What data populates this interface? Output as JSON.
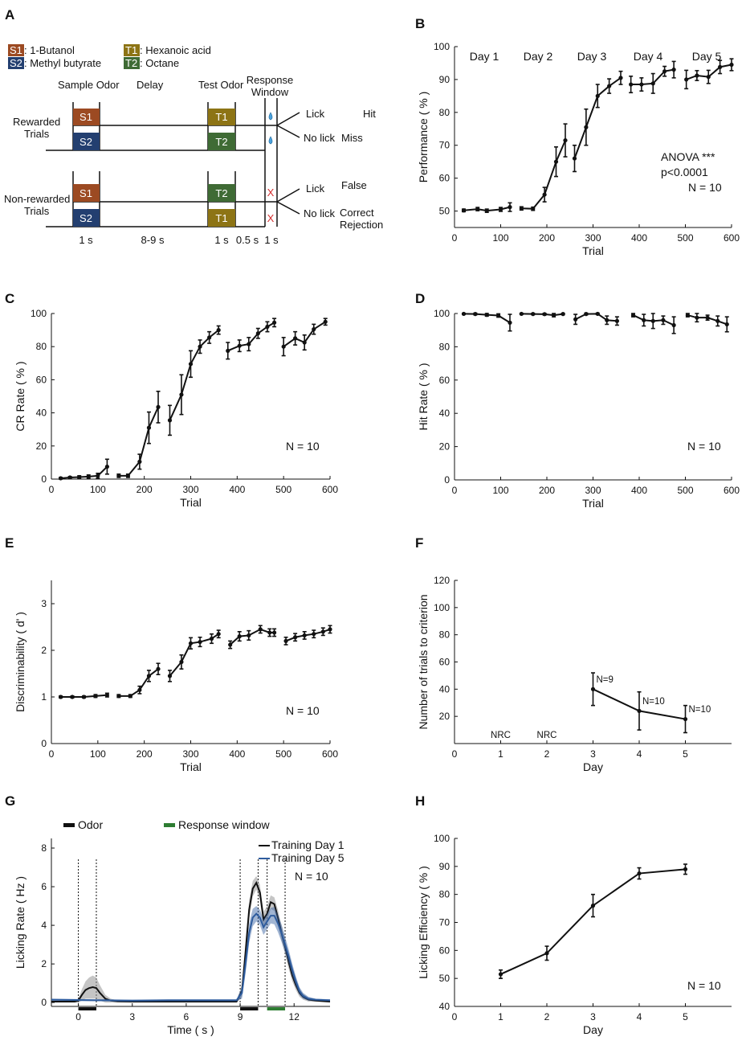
{
  "colors": {
    "s1": "#9c4a22",
    "s2": "#233f70",
    "t1": "#8d7415",
    "t2": "#3f6b35",
    "gray": "#bdbdbd",
    "blue": "#2e5c9e",
    "response": "#2e7d32",
    "black": "#111111"
  },
  "panelA": {
    "letter": "A",
    "legend": {
      "s1_tag": "S1",
      "s1_name": ": 1-Butanol",
      "s2_tag": "S2",
      "s2_name": ": Methyl butyrate",
      "t1_tag": "T1",
      "t1_name": ": Hexanoic acid",
      "t2_tag": "T2",
      "t2_name": ": Octane"
    },
    "headers": {
      "sample": "Sample Odor",
      "delay": "Delay",
      "test": "Test Odor",
      "response_line1": "Response",
      "response_line2": "Window"
    },
    "rewarded": {
      "label_line1": "Rewarded",
      "label_line2": "Trials",
      "top_sample": "S1",
      "bottom_sample": "S2",
      "top_test": "T1",
      "bottom_test": "T2",
      "lick": "Lick",
      "nolick": "No lick",
      "outcome_lick": "Hit",
      "outcome_nolick": "Miss"
    },
    "nonrewarded": {
      "label_line1": "Non-rewarded",
      "label_line2": "Trials",
      "top_sample": "S1",
      "bottom_sample": "S2",
      "top_test": "T2",
      "bottom_test": "T1",
      "lick": "Lick",
      "nolick": "No lick",
      "outcome_lick": "False",
      "outcome_nolick_line1": "Correct",
      "outcome_nolick_line2": "Rejection",
      "cross": "X"
    },
    "durations": {
      "sample": "1 s",
      "delay": "8-9 s",
      "test": "1 s",
      "gap": "0.5 s",
      "response": "1 s"
    }
  },
  "chart_data": [
    {
      "panel": "B",
      "type": "line",
      "xlabel": "Trial",
      "ylabel": "Performance ( % )",
      "xlim": [
        0,
        600
      ],
      "ylim": [
        45,
        100
      ],
      "xticks": [
        0,
        100,
        200,
        300,
        400,
        500,
        600
      ],
      "yticks": [
        50,
        60,
        70,
        80,
        90,
        100
      ],
      "day_labels": [
        "Day 1",
        "Day 2",
        "Day 3",
        "Day 4",
        "Day 5"
      ],
      "annotations": [
        "ANOVA ***",
        "p<0.0001",
        "N = 10"
      ],
      "segments": [
        {
          "x": [
            20,
            50,
            70,
            100,
            120
          ],
          "y": [
            50.2,
            50.6,
            50.1,
            50.5,
            51.2
          ],
          "err": [
            0.4,
            0.5,
            0.5,
            0.6,
            1.3
          ]
        },
        {
          "x": [
            145,
            170,
            195,
            220,
            240
          ],
          "y": [
            50.8,
            50.7,
            55.0,
            65.0,
            71.5
          ],
          "err": [
            0.5,
            0.5,
            2.2,
            4.5,
            5.0
          ]
        },
        {
          "x": [
            260,
            285,
            310,
            335,
            360
          ],
          "y": [
            66.0,
            75.5,
            85.0,
            88.0,
            90.5
          ],
          "err": [
            4.0,
            5.5,
            3.5,
            2.2,
            2.0
          ]
        },
        {
          "x": [
            382,
            405,
            430,
            455,
            475
          ],
          "y": [
            88.5,
            88.5,
            88.8,
            92.5,
            93.0
          ],
          "err": [
            2.5,
            2.0,
            3.0,
            1.5,
            2.5
          ]
        },
        {
          "x": [
            502,
            525,
            550,
            575,
            600
          ],
          "y": [
            90.0,
            91.2,
            90.8,
            93.8,
            94.5
          ],
          "err": [
            2.8,
            1.5,
            2.0,
            2.0,
            1.8
          ]
        }
      ]
    },
    {
      "panel": "C",
      "type": "line",
      "xlabel": "Trial",
      "ylabel": "CR Rate ( % )",
      "xlim": [
        0,
        600
      ],
      "ylim": [
        0,
        100
      ],
      "xticks": [
        0,
        100,
        200,
        300,
        400,
        500,
        600
      ],
      "yticks": [
        0,
        20,
        40,
        60,
        80,
        100
      ],
      "annotations": [
        "N = 10"
      ],
      "segments": [
        {
          "x": [
            20,
            40,
            60,
            80,
            100,
            120
          ],
          "y": [
            0.5,
            1.0,
            1.2,
            1.5,
            2.0,
            7.5
          ],
          "err": [
            0.5,
            0.5,
            0.8,
            1.0,
            1.5,
            4.5
          ]
        },
        {
          "x": [
            145,
            165,
            190,
            210,
            230
          ],
          "y": [
            2.0,
            2.0,
            10.5,
            31.0,
            43.5
          ],
          "err": [
            1.0,
            1.0,
            4.5,
            9.5,
            9.5
          ]
        },
        {
          "x": [
            255,
            280,
            300,
            320,
            340,
            360
          ],
          "y": [
            35.5,
            51.0,
            69.5,
            80.0,
            85.5,
            90.0
          ],
          "err": [
            9.0,
            12.0,
            8.0,
            4.0,
            3.5,
            2.5
          ]
        },
        {
          "x": [
            380,
            405,
            425,
            445,
            465,
            480
          ],
          "y": [
            77.5,
            80.5,
            81.5,
            88.0,
            92.0,
            94.5
          ],
          "err": [
            5.0,
            3.5,
            4.0,
            3.0,
            3.0,
            2.5
          ]
        },
        {
          "x": [
            500,
            525,
            545,
            565,
            590
          ],
          "y": [
            80.0,
            85.0,
            82.5,
            90.5,
            95.0
          ],
          "err": [
            5.5,
            4.0,
            4.5,
            3.0,
            2.0
          ]
        }
      ]
    },
    {
      "panel": "D",
      "type": "line",
      "xlabel": "Trial",
      "ylabel": "Hit Rate ( % )",
      "xlim": [
        0,
        600
      ],
      "ylim": [
        0,
        100
      ],
      "xticks": [
        0,
        100,
        200,
        300,
        400,
        500,
        600
      ],
      "yticks": [
        0,
        20,
        40,
        60,
        80,
        100
      ],
      "annotations": [
        "N = 10"
      ],
      "segments": [
        {
          "x": [
            20,
            45,
            70,
            95,
            120
          ],
          "y": [
            99.8,
            99.7,
            99.2,
            98.8,
            94.5
          ],
          "err": [
            0.3,
            0.5,
            0.8,
            1.0,
            5.0
          ]
        },
        {
          "x": [
            145,
            170,
            195,
            215,
            235
          ],
          "y": [
            99.8,
            99.7,
            99.6,
            99.0,
            99.7
          ],
          "err": [
            0.3,
            0.4,
            0.5,
            1.0,
            0.4
          ]
        },
        {
          "x": [
            262,
            285,
            310,
            330,
            352
          ],
          "y": [
            96.5,
            99.7,
            99.8,
            96.0,
            95.5
          ],
          "err": [
            3.0,
            0.5,
            0.4,
            2.5,
            2.5
          ]
        },
        {
          "x": [
            387,
            410,
            430,
            452,
            475
          ],
          "y": [
            99.0,
            96.0,
            95.5,
            96.0,
            93.0
          ],
          "err": [
            1.0,
            3.5,
            4.5,
            2.5,
            5.0
          ]
        },
        {
          "x": [
            505,
            525,
            548,
            570,
            590
          ],
          "y": [
            99.0,
            97.5,
            97.5,
            95.5,
            93.5
          ],
          "err": [
            1.0,
            2.5,
            1.5,
            3.0,
            4.5
          ]
        }
      ]
    },
    {
      "panel": "E",
      "type": "line",
      "xlabel": "Trial",
      "ylabel": "Discriminability ( d' )",
      "xlim": [
        0,
        600
      ],
      "ylim": [
        0,
        3.5
      ],
      "xticks": [
        0,
        100,
        200,
        300,
        400,
        500,
        600
      ],
      "yticks": [
        0,
        1,
        2,
        3
      ],
      "annotations": [
        "N = 10"
      ],
      "segments": [
        {
          "x": [
            20,
            45,
            70,
            95,
            120
          ],
          "y": [
            1.0,
            1.0,
            1.0,
            1.02,
            1.04
          ],
          "err": [
            0.02,
            0.02,
            0.02,
            0.03,
            0.04
          ]
        },
        {
          "x": [
            145,
            170,
            190,
            210,
            230
          ],
          "y": [
            1.02,
            1.02,
            1.15,
            1.45,
            1.6
          ],
          "err": [
            0.03,
            0.03,
            0.08,
            0.12,
            0.12
          ]
        },
        {
          "x": [
            255,
            280,
            300,
            320,
            345,
            360
          ],
          "y": [
            1.45,
            1.75,
            2.15,
            2.18,
            2.25,
            2.35
          ],
          "err": [
            0.12,
            0.15,
            0.12,
            0.1,
            0.1,
            0.08
          ]
        },
        {
          "x": [
            385,
            405,
            425,
            450,
            470,
            480
          ],
          "y": [
            2.12,
            2.3,
            2.32,
            2.45,
            2.38,
            2.38
          ],
          "err": [
            0.08,
            0.1,
            0.1,
            0.08,
            0.08,
            0.08
          ]
        },
        {
          "x": [
            505,
            525,
            545,
            565,
            585,
            600
          ],
          "y": [
            2.2,
            2.28,
            2.32,
            2.35,
            2.4,
            2.45
          ],
          "err": [
            0.08,
            0.08,
            0.08,
            0.08,
            0.08,
            0.08
          ]
        }
      ]
    },
    {
      "panel": "F",
      "type": "line",
      "xlabel": "Day",
      "ylabel": "Number of trials to criterion",
      "xlim": [
        0,
        6
      ],
      "ylim": [
        0,
        120
      ],
      "xticks": [
        0,
        1,
        2,
        3,
        4,
        5
      ],
      "yticks": [
        20,
        40,
        60,
        80,
        100,
        120
      ],
      "nrc_days": [
        1,
        2
      ],
      "nrc_label": "NRC",
      "segments": [
        {
          "x": [
            3,
            4,
            5
          ],
          "y": [
            40,
            24,
            18
          ],
          "err": [
            12,
            14,
            10
          ]
        }
      ],
      "point_labels": [
        "N=9",
        "N=10",
        "N=10"
      ]
    },
    {
      "panel": "G",
      "type": "line",
      "xlabel": "Time ( s )",
      "ylabel": "Licking Rate ( Hz )",
      "xlim": [
        -1.5,
        14
      ],
      "ylim": [
        -0.2,
        8.5
      ],
      "xticks": [
        0,
        3,
        6,
        9,
        12
      ],
      "yticks": [
        0,
        2,
        4,
        6,
        8
      ],
      "bar_legend": {
        "odor": "Odor",
        "response": "Response window"
      },
      "annotations": [
        "N = 10"
      ],
      "odor_periods": [
        [
          0,
          1
        ],
        [
          9,
          10
        ]
      ],
      "response_window": [
        10.5,
        11.5
      ],
      "vlines": [
        0,
        1,
        9,
        10,
        10.5,
        11.5
      ],
      "series": [
        {
          "name": "Training Day 1",
          "color": "#111111",
          "x": [
            -1.5,
            -0.2,
            0,
            0.2,
            0.4,
            0.6,
            0.8,
            1.0,
            1.2,
            1.5,
            1.8,
            2.2,
            3,
            5,
            7,
            8.8,
            9.1,
            9.3,
            9.5,
            9.7,
            9.9,
            10.1,
            10.3,
            10.5,
            10.7,
            10.9,
            11.1,
            11.3,
            11.5,
            11.7,
            11.9,
            12.1,
            12.3,
            12.5,
            12.8,
            13.2,
            14
          ],
          "y": [
            0.05,
            0.05,
            0.1,
            0.4,
            0.65,
            0.75,
            0.8,
            0.75,
            0.5,
            0.2,
            0.1,
            0.06,
            0.05,
            0.05,
            0.05,
            0.05,
            0.6,
            2.6,
            4.8,
            5.9,
            6.2,
            5.7,
            4.3,
            4.6,
            5.2,
            5.1,
            4.4,
            3.6,
            2.9,
            2.1,
            1.4,
            0.9,
            0.5,
            0.3,
            0.15,
            0.1,
            0.05
          ],
          "sem": [
            0.05,
            0.05,
            0.1,
            0.3,
            0.45,
            0.55,
            0.6,
            0.55,
            0.4,
            0.2,
            0.1,
            0.05,
            0.05,
            0.05,
            0.05,
            0.05,
            0.3,
            0.6,
            0.5,
            0.4,
            0.35,
            0.4,
            0.4,
            0.4,
            0.35,
            0.35,
            0.4,
            0.4,
            0.4,
            0.35,
            0.3,
            0.25,
            0.2,
            0.15,
            0.1,
            0.05,
            0.05
          ]
        },
        {
          "name": "Training Day 5",
          "color": "#2e5c9e",
          "x": [
            -1.5,
            1,
            3,
            5,
            7,
            8.8,
            9.1,
            9.3,
            9.5,
            9.7,
            9.9,
            10.1,
            10.3,
            10.5,
            10.7,
            10.9,
            11.1,
            11.3,
            11.5,
            11.7,
            11.9,
            12.1,
            12.3,
            12.5,
            12.8,
            13.2,
            14
          ],
          "y": [
            0.15,
            0.12,
            0.1,
            0.12,
            0.12,
            0.12,
            0.5,
            2.0,
            3.6,
            4.4,
            4.6,
            4.4,
            3.9,
            4.2,
            4.5,
            4.5,
            4.1,
            3.6,
            3.0,
            2.4,
            1.7,
            1.1,
            0.6,
            0.35,
            0.2,
            0.15,
            0.12
          ],
          "sem": [
            0.05,
            0.05,
            0.05,
            0.05,
            0.05,
            0.05,
            0.3,
            0.5,
            0.5,
            0.45,
            0.4,
            0.4,
            0.4,
            0.4,
            0.4,
            0.45,
            0.45,
            0.45,
            0.4,
            0.35,
            0.3,
            0.25,
            0.2,
            0.15,
            0.1,
            0.05,
            0.05
          ]
        }
      ]
    },
    {
      "panel": "H",
      "type": "line",
      "xlabel": "Day",
      "ylabel": "Licking Efficiency ( % )",
      "xlim": [
        0,
        6
      ],
      "ylim": [
        40,
        100
      ],
      "xticks": [
        0,
        1,
        2,
        3,
        4,
        5
      ],
      "yticks": [
        40,
        50,
        60,
        70,
        80,
        90,
        100
      ],
      "annotations": [
        "N = 10"
      ],
      "segments": [
        {
          "x": [
            1,
            2,
            3,
            4,
            5
          ],
          "y": [
            51.5,
            59.0,
            76.0,
            87.5,
            89.0
          ],
          "err": [
            1.5,
            2.5,
            4.0,
            2.0,
            1.8
          ]
        }
      ]
    }
  ]
}
